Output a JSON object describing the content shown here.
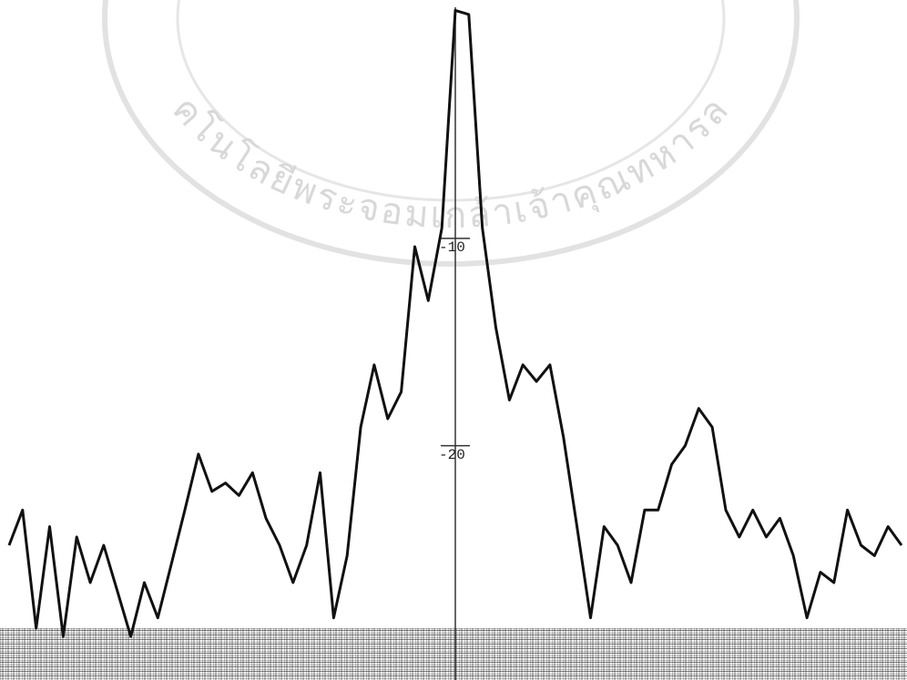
{
  "watermark": "คโนโลยีพระจอมเกล้าเจ้าคุณทหารล",
  "chart_data": {
    "type": "line",
    "color": "#111111",
    "values": [
      -24.8,
      -23.1,
      -28.8,
      -23.9,
      -29.2,
      -24.4,
      -26.6,
      -24.8,
      -27.0,
      -29.2,
      -26.6,
      -28.3,
      -25.7,
      -23.1,
      -20.4,
      -22.2,
      -21.8,
      -22.4,
      -21.3,
      -23.5,
      -24.8,
      -26.6,
      -24.8,
      -21.3,
      -28.3,
      -25.3,
      -19.1,
      -16.1,
      -18.7,
      -17.4,
      -10.4,
      -13.0,
      -9.5,
      1.0,
      0.8,
      -9.5,
      -14.3,
      -17.8,
      -16.1,
      -16.9,
      -16.1,
      -19.6,
      -23.9,
      -28.3,
      -23.9,
      -24.8,
      -26.6,
      -23.1,
      -23.1,
      -20.9,
      -20.0,
      -18.2,
      -19.1,
      -23.1,
      -24.4,
      -23.1,
      -24.4,
      -23.5,
      -25.3,
      -28.3,
      -26.1,
      -26.6,
      -23.1,
      -24.8,
      -25.3,
      -23.9,
      -24.8
    ],
    "ylim": [
      -31.3,
      1.5
    ],
    "yticks": [
      -10,
      -20
    ]
  }
}
